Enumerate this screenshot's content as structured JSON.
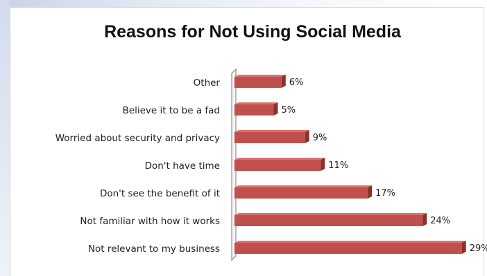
{
  "chart_data": {
    "type": "bar",
    "orientation": "horizontal",
    "title": "Reasons for Not Using Social Media",
    "xlabel": "",
    "ylabel": "",
    "categories": [
      "Other",
      "Believe it to be a fad",
      "Worried about security and privacy",
      "Don't have time",
      "Don't see the benefit of it",
      "Not familiar with how it works",
      "Not relevant to my business"
    ],
    "values": [
      6,
      5,
      9,
      11,
      17,
      24,
      29
    ],
    "value_labels": [
      "6%",
      "5%",
      "9%",
      "11%",
      "17%",
      "24%",
      "29%"
    ],
    "xlim": [
      0,
      30
    ],
    "grid": false,
    "legend": "none",
    "style": "3d",
    "bar_color": "#c0504d"
  }
}
